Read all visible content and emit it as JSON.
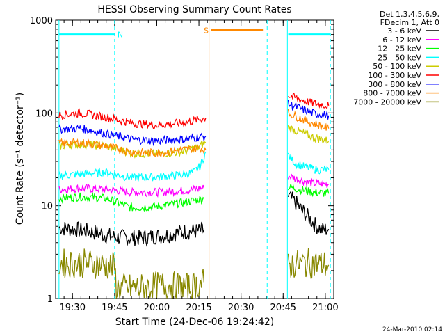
{
  "chart_data": {
    "type": "line",
    "title": "HESSI Observing Summary Count Rates",
    "xlabel": "Start Time (24-Dec-06 19:24:42)",
    "ylabel": "Count Rate (s⁻¹ detector⁻¹)",
    "yscale": "log",
    "ylim": [
      1,
      1000
    ],
    "xlim_minutes": [
      19.4,
      21.05
    ],
    "x_tick_labels": [
      "19:30",
      "19:45",
      "20:00",
      "20:15",
      "20:30",
      "20:45",
      "21:00"
    ],
    "x_tick_values": [
      19.5,
      19.75,
      20.0,
      20.25,
      20.5,
      20.75,
      21.0
    ],
    "y_tick_labels": [
      "1",
      "10",
      "100",
      "1000"
    ],
    "y_tick_values": [
      1,
      10,
      100,
      1000
    ],
    "legend_header": [
      "Det 1,3,4,5,6,9,",
      "FDecim 1, Att 0"
    ],
    "series": [
      {
        "name": "3 - 6 keV",
        "color": "#000000",
        "segments": [
          [
            [
              19.42,
              5.8
            ],
            [
              19.5,
              5.6
            ],
            [
              19.6,
              5.3
            ],
            [
              19.75,
              4.6
            ],
            [
              19.9,
              4.5
            ],
            [
              20.05,
              4.8
            ],
            [
              20.15,
              5.2
            ],
            [
              20.28,
              5.4
            ]
          ],
          [
            [
              20.78,
              12.5
            ],
            [
              20.82,
              11
            ],
            [
              20.86,
              9
            ],
            [
              20.9,
              7.5
            ],
            [
              20.94,
              6.2
            ],
            [
              20.98,
              5.5
            ],
            [
              21.02,
              5.6
            ]
          ]
        ]
      },
      {
        "name": "6 - 12 keV",
        "color": "#ff00ff",
        "segments": [
          [
            [
              19.42,
              15
            ],
            [
              19.55,
              15.5
            ],
            [
              19.7,
              15
            ],
            [
              19.85,
              14
            ],
            [
              20.0,
              14
            ],
            [
              20.15,
              14.5
            ],
            [
              20.28,
              15.5
            ]
          ],
          [
            [
              20.78,
              21
            ],
            [
              20.85,
              19
            ],
            [
              20.92,
              17.5
            ],
            [
              21.02,
              17
            ]
          ]
        ]
      },
      {
        "name": "12 - 25 keV",
        "color": "#00ff00",
        "segments": [
          [
            [
              19.42,
              12
            ],
            [
              19.55,
              12.5
            ],
            [
              19.7,
              12
            ],
            [
              19.85,
              9.5
            ],
            [
              20.0,
              9.8
            ],
            [
              20.15,
              10.8
            ],
            [
              20.28,
              12
            ]
          ],
          [
            [
              20.78,
              16
            ],
            [
              20.85,
              15
            ],
            [
              20.92,
              14
            ],
            [
              21.02,
              13.5
            ]
          ]
        ]
      },
      {
        "name": "25 - 50 keV",
        "color": "#00ffff",
        "segments": [
          [
            [
              19.42,
              21
            ],
            [
              19.55,
              22
            ],
            [
              19.7,
              23
            ],
            [
              19.85,
              20
            ],
            [
              20.0,
              20.5
            ],
            [
              20.15,
              21.5
            ],
            [
              20.22,
              23
            ],
            [
              20.26,
              27
            ],
            [
              20.29,
              38
            ]
          ],
          [
            [
              20.78,
              35
            ],
            [
              20.82,
              29
            ],
            [
              20.88,
              26
            ],
            [
              20.95,
              24.5
            ],
            [
              21.02,
              24.5
            ]
          ]
        ]
      },
      {
        "name": "50 - 100 keV",
        "color": "#cccc00",
        "segments": [
          [
            [
              19.42,
              44
            ],
            [
              19.55,
              46
            ],
            [
              19.7,
              44
            ],
            [
              19.85,
              37
            ],
            [
              20.0,
              36
            ],
            [
              20.15,
              38
            ],
            [
              20.25,
              43
            ],
            [
              20.29,
              48
            ]
          ],
          [
            [
              20.78,
              70
            ],
            [
              20.85,
              62
            ],
            [
              20.92,
              55
            ],
            [
              21.02,
              50
            ]
          ]
        ]
      },
      {
        "name": "100 - 300 keV",
        "color": "#ff0000",
        "segments": [
          [
            [
              19.42,
              95
            ],
            [
              19.55,
              100
            ],
            [
              19.7,
              90
            ],
            [
              19.85,
              78
            ],
            [
              20.0,
              74
            ],
            [
              20.15,
              78
            ],
            [
              20.29,
              88
            ]
          ],
          [
            [
              20.78,
              155
            ],
            [
              20.85,
              140
            ],
            [
              20.92,
              128
            ],
            [
              21.02,
              120
            ]
          ]
        ]
      },
      {
        "name": "300 - 800 keV",
        "color": "#0000ff",
        "segments": [
          [
            [
              19.42,
              67
            ],
            [
              19.55,
              68
            ],
            [
              19.7,
              60
            ],
            [
              19.85,
              52
            ],
            [
              20.0,
              50
            ],
            [
              20.15,
              52
            ],
            [
              20.29,
              56
            ]
          ],
          [
            [
              20.78,
              125
            ],
            [
              20.85,
              112
            ],
            [
              20.92,
              100
            ],
            [
              21.02,
              94
            ]
          ]
        ]
      },
      {
        "name": "800 - 7000 keV",
        "color": "#ff8800",
        "segments": [
          [
            [
              19.42,
              47
            ],
            [
              19.55,
              48
            ],
            [
              19.7,
              44
            ],
            [
              19.85,
              38
            ],
            [
              20.0,
              37
            ],
            [
              20.15,
              40
            ],
            [
              20.25,
              42
            ],
            [
              20.29,
              40
            ]
          ],
          [
            [
              20.78,
              100
            ],
            [
              20.85,
              88
            ],
            [
              20.92,
              78
            ],
            [
              21.02,
              68
            ]
          ]
        ]
      },
      {
        "name": "7000 - 20000 keV",
        "color": "#888800",
        "segments": [
          [
            [
              19.42,
              2.4
            ],
            [
              19.6,
              2.4
            ],
            [
              19.75,
              2.2
            ],
            [
              19.76,
              1.3
            ],
            [
              19.9,
              1.3
            ],
            [
              20.05,
              1.4
            ],
            [
              20.2,
              1.3
            ],
            [
              20.28,
              1.5
            ]
          ],
          [
            [
              20.78,
              2.3
            ],
            [
              20.9,
              2.4
            ],
            [
              21.02,
              2.3
            ]
          ]
        ]
      }
    ],
    "annotations": [
      {
        "label": "N",
        "color": "#00ffff",
        "level": 700,
        "x_from": 19.42,
        "x_to": 19.75
      },
      {
        "label": "S",
        "color": "#ff8800",
        "level": 780,
        "x_from": 20.32,
        "x_to": 20.63
      },
      {
        "label": "",
        "color": "#00ffff",
        "level": 700,
        "x_from": 20.78,
        "x_to": 21.03
      }
    ],
    "vlines": [
      {
        "x": 19.42,
        "color": "#00ffff",
        "style": "solid"
      },
      {
        "x": 19.75,
        "color": "#00ffff",
        "style": "dashed"
      },
      {
        "x": 20.31,
        "color": "#ff8800",
        "style": "solid"
      },
      {
        "x": 20.655,
        "color": "#00ffff",
        "style": "dashed"
      },
      {
        "x": 20.775,
        "color": "#00ffff",
        "style": "solid"
      },
      {
        "x": 21.03,
        "color": "#00ffff",
        "style": "dashed"
      }
    ]
  },
  "timestamp": "24-Mar-2010 02:14"
}
